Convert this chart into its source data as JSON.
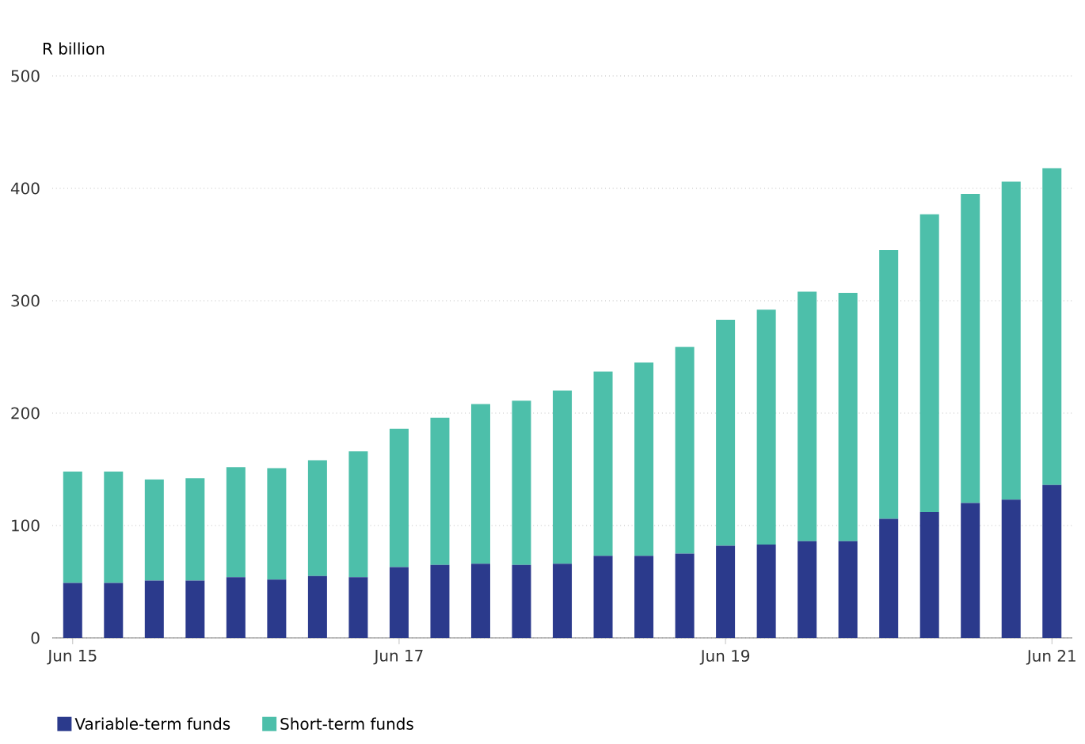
{
  "chart_data": {
    "type": "bar",
    "stacked": true,
    "ylabel": "R billion",
    "categories": [
      "Jun 15",
      null,
      null,
      null,
      null,
      null,
      null,
      null,
      "Jun 17",
      null,
      null,
      null,
      null,
      null,
      null,
      null,
      "Jun 19",
      null,
      null,
      null,
      null,
      null,
      null,
      null,
      "Jun 21"
    ],
    "series": [
      {
        "name": "Variable-term funds",
        "color": "#2b3a8c",
        "values": [
          49,
          49,
          51,
          51,
          54,
          52,
          55,
          54,
          63,
          65,
          66,
          65,
          66,
          73,
          73,
          75,
          82,
          83,
          86,
          86,
          106,
          112,
          120,
          123,
          136
        ]
      },
      {
        "name": "Short-term funds",
        "color": "#4dbfaa",
        "values": [
          99,
          99,
          90,
          91,
          98,
          99,
          103,
          112,
          123,
          131,
          142,
          146,
          154,
          164,
          172,
          184,
          201,
          209,
          222,
          221,
          239,
          265,
          275,
          283,
          282
        ]
      }
    ],
    "ylim": [
      0,
      500
    ],
    "yticks": [
      0,
      100,
      200,
      300,
      400,
      500
    ],
    "grid": "y",
    "legend": "bottom left"
  }
}
